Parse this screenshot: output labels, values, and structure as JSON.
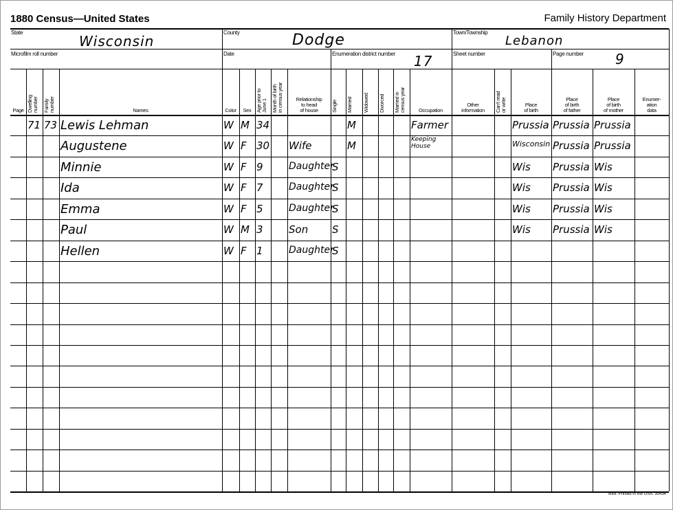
{
  "form": {
    "title": "1880 Census—United States",
    "department": "Family History Department",
    "footer": "9/89. Printed in the USA. 30434"
  },
  "fields": {
    "state": {
      "label": "State",
      "value": "Wisconsin"
    },
    "county": {
      "label": "County",
      "value": "Dodge"
    },
    "town": {
      "label": "Town/Township",
      "value": "Lebanon"
    },
    "microfilm": {
      "label": "Microfilm roll number",
      "value": ""
    },
    "date": {
      "label": "Date",
      "value": ""
    },
    "enumeration_district": {
      "label": "Enumeration district number",
      "value": "17"
    },
    "sheet": {
      "label": "Sheet number",
      "value": ""
    },
    "page": {
      "label": "Page number",
      "value": "9"
    }
  },
  "columns": [
    {
      "key": "page",
      "label": "Page"
    },
    {
      "key": "dwelling",
      "label": "Dwelling\nnumber"
    },
    {
      "key": "family",
      "label": "Family\nnumber"
    },
    {
      "key": "name",
      "label": "Names"
    },
    {
      "key": "color",
      "label": "Color"
    },
    {
      "key": "sex",
      "label": "Sex"
    },
    {
      "key": "age",
      "label": "Age prior to\nJune 1"
    },
    {
      "key": "month",
      "label": "Month of birth\nin census year"
    },
    {
      "key": "relationship",
      "label": "Relationship\nto head\nof house"
    },
    {
      "key": "single",
      "label": "Single"
    },
    {
      "key": "married",
      "label": "Married"
    },
    {
      "key": "widowed",
      "label": "Widowed"
    },
    {
      "key": "divorced",
      "label": "Divorced"
    },
    {
      "key": "married_year",
      "label": "Married in\ncensus year"
    },
    {
      "key": "occupation",
      "label": "Occupation"
    },
    {
      "key": "other",
      "label": "Other\ninformation"
    },
    {
      "key": "cant_read",
      "label": "Can't read\nor write"
    },
    {
      "key": "birthplace",
      "label": "Place\nof birth"
    },
    {
      "key": "father_birthplace",
      "label": "Place\nof birth\nof father"
    },
    {
      "key": "mother_birthplace",
      "label": "Place\nof birth\nof mother"
    },
    {
      "key": "enumeration",
      "label": "Enumer-\nation\ndata"
    }
  ],
  "rows": [
    {
      "dwelling": "71",
      "family": "73",
      "name": "Lewis Lehman",
      "color": "W",
      "sex": "M",
      "age": "34",
      "relationship": "",
      "married": "M",
      "occupation": "Farmer",
      "birthplace": "Prussia",
      "father_birthplace": "Prussia",
      "mother_birthplace": "Prussia"
    },
    {
      "name": "Augustene",
      "color": "W",
      "sex": "F",
      "age": "30",
      "relationship": "Wife",
      "married": "M",
      "occupation": "Keeping House",
      "birthplace": "Wisconsin",
      "father_birthplace": "Prussia",
      "mother_birthplace": "Prussia"
    },
    {
      "name": "Minnie",
      "color": "W",
      "sex": "F",
      "age": "9",
      "relationship": "Daughter",
      "single": "S",
      "birthplace": "Wis",
      "father_birthplace": "Prussia",
      "mother_birthplace": "Wis"
    },
    {
      "name": "Ida",
      "color": "W",
      "sex": "F",
      "age": "7",
      "relationship": "Daughter",
      "single": "S",
      "birthplace": "Wis",
      "father_birthplace": "Prussia",
      "mother_birthplace": "Wis"
    },
    {
      "name": "Emma",
      "color": "W",
      "sex": "F",
      "age": "5",
      "relationship": "Daughter",
      "single": "S",
      "birthplace": "Wis",
      "father_birthplace": "Prussia",
      "mother_birthplace": "Wis"
    },
    {
      "name": "Paul",
      "color": "W",
      "sex": "M",
      "age": "3",
      "relationship": "Son",
      "single": "S",
      "birthplace": "Wis",
      "father_birthplace": "Prussia",
      "mother_birthplace": "Wis"
    },
    {
      "name": "Hellen",
      "color": "W",
      "sex": "F",
      "age": "1",
      "relationship": "Daughter",
      "single": "S"
    }
  ]
}
